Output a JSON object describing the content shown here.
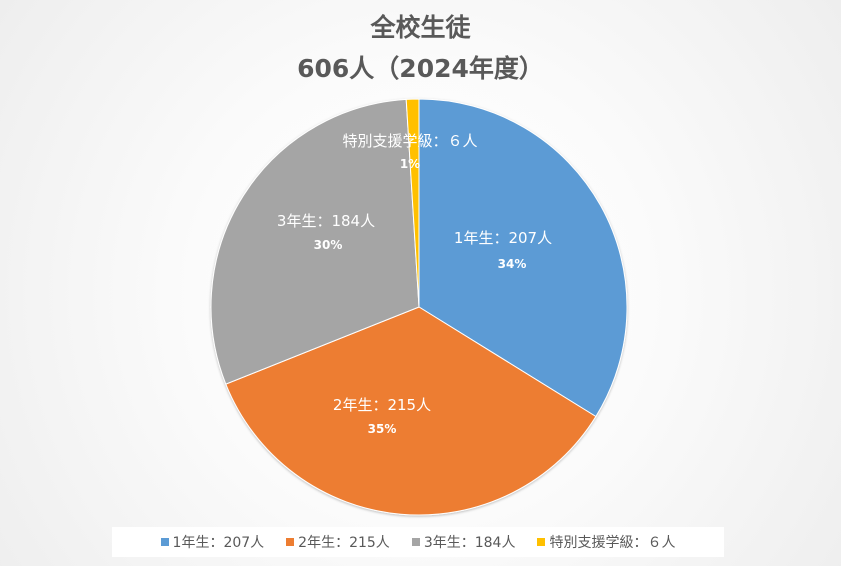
{
  "chart_data": {
    "type": "pie",
    "title": [
      "全校生徒",
      "606人（2024年度）"
    ],
    "categories": [
      "1年生：207人",
      "2年生：215人",
      "3年生：184人",
      "特別支援学級：６人"
    ],
    "values": [
      207,
      215,
      184,
      6
    ],
    "percent_labels": [
      "34%",
      "35%",
      "30%",
      "1%"
    ],
    "colors": [
      "#5b9bd5",
      "#ed7d31",
      "#a5a5a5",
      "#ffc000"
    ],
    "legend_position": "bottom"
  }
}
